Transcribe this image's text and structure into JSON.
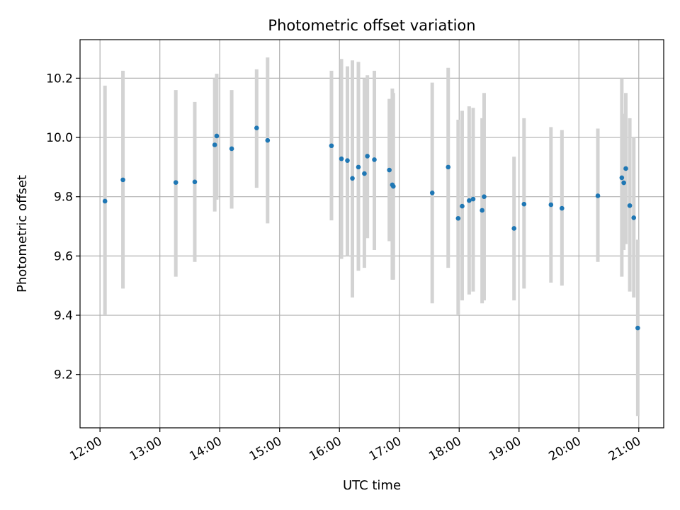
{
  "chart_data": {
    "type": "scatter",
    "title": "Photometric offset variation",
    "xlabel": "UTC time",
    "ylabel": "Photometric offset",
    "x_ticks": [
      "12:00",
      "13:00",
      "14:00",
      "15:00",
      "16:00",
      "17:00",
      "18:00",
      "19:00",
      "20:00",
      "21:00"
    ],
    "y_ticks": [
      "9.2",
      "9.4",
      "9.6",
      "9.8",
      "10.0",
      "10.2"
    ],
    "y_tick_values": [
      9.2,
      9.4,
      9.6,
      9.8,
      10.0,
      10.2
    ],
    "xlim": [
      "11:40",
      "21:25"
    ],
    "ylim": [
      9.02,
      10.33
    ],
    "grid": true,
    "marker_color": "#1f77b4",
    "errorbar_color": "#d3d3d3",
    "series": [
      {
        "points": [
          {
            "x": "12:05",
            "y": 9.785,
            "lo": 9.4,
            "hi": 10.175
          },
          {
            "x": "12:23",
            "y": 9.857,
            "lo": 9.49,
            "hi": 10.225
          },
          {
            "x": "13:16",
            "y": 9.848,
            "lo": 9.53,
            "hi": 10.16
          },
          {
            "x": "13:35",
            "y": 9.85,
            "lo": 9.58,
            "hi": 10.12
          },
          {
            "x": "13:55",
            "y": 9.975,
            "lo": 9.75,
            "hi": 10.2
          },
          {
            "x": "13:57",
            "y": 10.005,
            "lo": 9.79,
            "hi": 10.215
          },
          {
            "x": "14:12",
            "y": 9.962,
            "lo": 9.76,
            "hi": 10.16
          },
          {
            "x": "14:37",
            "y": 10.032,
            "lo": 9.83,
            "hi": 10.23
          },
          {
            "x": "14:48",
            "y": 9.99,
            "lo": 9.71,
            "hi": 10.27
          },
          {
            "x": "15:52",
            "y": 9.972,
            "lo": 9.72,
            "hi": 10.225
          },
          {
            "x": "16:02",
            "y": 9.928,
            "lo": 9.59,
            "hi": 10.265
          },
          {
            "x": "16:08",
            "y": 9.922,
            "lo": 9.6,
            "hi": 10.24
          },
          {
            "x": "16:13",
            "y": 9.862,
            "lo": 9.46,
            "hi": 10.26
          },
          {
            "x": "16:19",
            "y": 9.9,
            "lo": 9.55,
            "hi": 10.255
          },
          {
            "x": "16:25",
            "y": 9.878,
            "lo": 9.56,
            "hi": 10.2
          },
          {
            "x": "16:28",
            "y": 9.937,
            "lo": 9.66,
            "hi": 10.21
          },
          {
            "x": "16:35",
            "y": 9.925,
            "lo": 9.62,
            "hi": 10.225
          },
          {
            "x": "16:50",
            "y": 9.89,
            "lo": 9.65,
            "hi": 10.13
          },
          {
            "x": "16:53",
            "y": 9.84,
            "lo": 9.52,
            "hi": 10.165
          },
          {
            "x": "16:54",
            "y": 9.835,
            "lo": 9.52,
            "hi": 10.15
          },
          {
            "x": "17:33",
            "y": 9.813,
            "lo": 9.44,
            "hi": 10.185
          },
          {
            "x": "17:49",
            "y": 9.9,
            "lo": 9.56,
            "hi": 10.235
          },
          {
            "x": "17:59",
            "y": 9.727,
            "lo": 9.4,
            "hi": 10.06
          },
          {
            "x": "18:03",
            "y": 9.768,
            "lo": 9.45,
            "hi": 10.09
          },
          {
            "x": "18:10",
            "y": 9.787,
            "lo": 9.47,
            "hi": 10.105
          },
          {
            "x": "18:14",
            "y": 9.792,
            "lo": 9.48,
            "hi": 10.1
          },
          {
            "x": "18:23",
            "y": 9.754,
            "lo": 9.44,
            "hi": 10.065
          },
          {
            "x": "18:25",
            "y": 9.8,
            "lo": 9.45,
            "hi": 10.15
          },
          {
            "x": "18:55",
            "y": 9.693,
            "lo": 9.45,
            "hi": 9.935
          },
          {
            "x": "19:05",
            "y": 9.775,
            "lo": 9.49,
            "hi": 10.065
          },
          {
            "x": "19:32",
            "y": 9.773,
            "lo": 9.51,
            "hi": 10.035
          },
          {
            "x": "19:43",
            "y": 9.761,
            "lo": 9.5,
            "hi": 10.025
          },
          {
            "x": "20:19",
            "y": 9.803,
            "lo": 9.58,
            "hi": 10.03
          },
          {
            "x": "20:43",
            "y": 9.864,
            "lo": 9.53,
            "hi": 10.2
          },
          {
            "x": "20:45",
            "y": 9.847,
            "lo": 9.62,
            "hi": 10.08
          },
          {
            "x": "20:47",
            "y": 9.895,
            "lo": 9.64,
            "hi": 10.15
          },
          {
            "x": "20:51",
            "y": 9.77,
            "lo": 9.48,
            "hi": 10.065
          },
          {
            "x": "20:55",
            "y": 9.729,
            "lo": 9.46,
            "hi": 10.0
          },
          {
            "x": "20:59",
            "y": 9.357,
            "lo": 9.06,
            "hi": 9.655
          }
        ]
      }
    ]
  }
}
